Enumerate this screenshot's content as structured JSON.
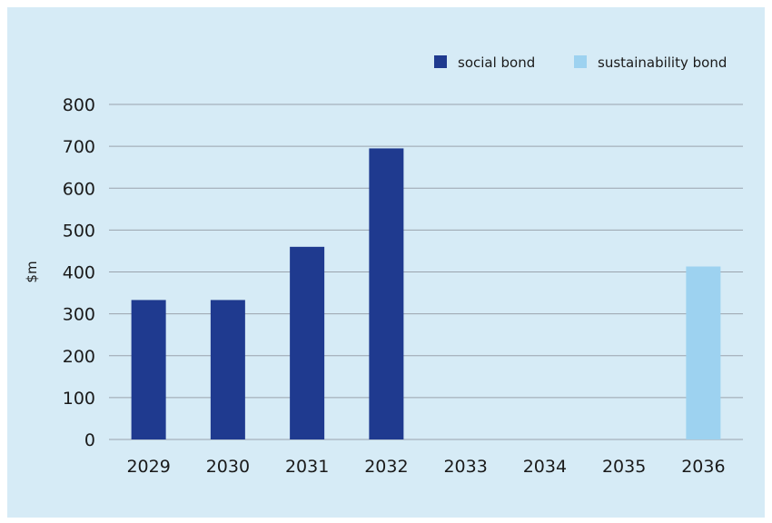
{
  "chart_data": {
    "type": "bar",
    "categories": [
      "2029",
      "2030",
      "2031",
      "2032",
      "2033",
      "2034",
      "2035",
      "2036"
    ],
    "series": [
      {
        "name": "social bond",
        "color": "#1f3a8f",
        "values": [
          333,
          333,
          460,
          695,
          null,
          null,
          null,
          null
        ]
      },
      {
        "name": "sustainability bond",
        "color": "#9dd2f0",
        "values": [
          null,
          null,
          null,
          null,
          null,
          null,
          null,
          413
        ]
      }
    ],
    "title": "",
    "xlabel": "",
    "ylabel": "$m",
    "ylim": [
      0,
      800
    ],
    "yticks": [
      0,
      100,
      200,
      300,
      400,
      500,
      600,
      700,
      800
    ],
    "grid": true,
    "legend_position": "top-right"
  }
}
